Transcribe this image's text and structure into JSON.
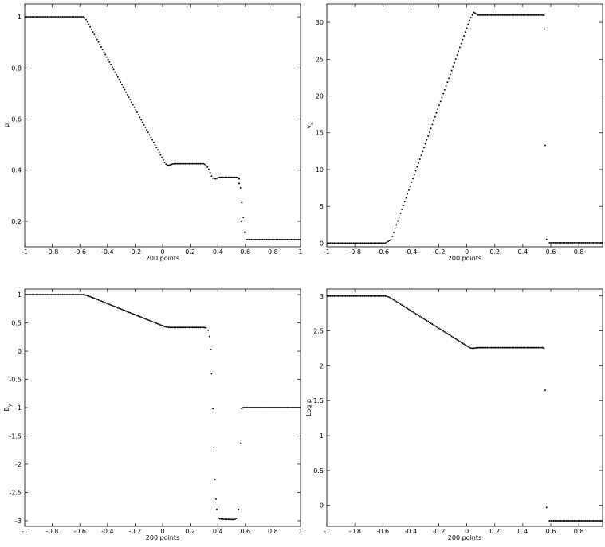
{
  "chart_data": [
    {
      "type": "scatter",
      "xlabel": "200 points",
      "ylabel": "ρ",
      "ylabel_sub": "",
      "xlim": [
        -1,
        1
      ],
      "ylim": [
        0.1,
        1.05
      ],
      "xticks": [
        -1,
        -0.8,
        -0.6,
        -0.4,
        -0.2,
        0,
        0.2,
        0.4,
        0.6,
        0.8,
        1
      ],
      "xtick_labels": [
        "-1",
        "-0.8",
        "-0.6",
        "-0.4",
        "-0.2",
        "0",
        "0.2",
        "0.4",
        "0.6",
        "0.8",
        "1"
      ],
      "yticks": [
        0.2,
        0.4,
        0.6,
        0.8,
        1
      ],
      "ytick_labels": [
        "0.2",
        "0.4",
        "0.6",
        "0.8",
        "1"
      ],
      "profile": [
        [
          -1,
          1
        ],
        [
          -0.57,
          1
        ],
        [
          -0.55,
          0.985
        ],
        [
          0.02,
          0.425
        ],
        [
          0.04,
          0.418
        ],
        [
          0.08,
          0.425
        ],
        [
          0.3,
          0.425
        ],
        [
          0.33,
          0.41
        ],
        [
          0.36,
          0.37
        ],
        [
          0.38,
          0.365
        ],
        [
          0.41,
          0.372
        ],
        [
          0.55,
          0.372
        ],
        [
          0.56,
          0.36
        ],
        [
          0.6,
          0.128
        ],
        [
          1,
          0.128
        ]
      ],
      "jump_points": [
        [
          0.555,
          0.348
        ],
        [
          0.57,
          0.2
        ]
      ],
      "grid": false
    },
    {
      "type": "scatter",
      "xlabel": "200 points",
      "ylabel": "v",
      "ylabel_sub": "x",
      "xlim": [
        -1,
        0.97
      ],
      "ylim": [
        -0.5,
        32.5
      ],
      "xticks": [
        -1,
        -0.8,
        -0.6,
        -0.4,
        -0.2,
        0,
        0.2,
        0.4,
        0.6,
        0.8
      ],
      "xtick_labels": [
        "-1",
        "-0.8",
        "-0.6",
        "-0.4",
        "-0.2",
        "0",
        "0.2",
        "0.4",
        "0.6",
        "0.8"
      ],
      "yticks": [
        0,
        5,
        10,
        15,
        20,
        25,
        30
      ],
      "ytick_labels": [
        "0",
        "5",
        "10",
        "15",
        "20",
        "25",
        "30"
      ],
      "profile": [
        [
          -1,
          0
        ],
        [
          -0.58,
          0
        ],
        [
          -0.54,
          0.5
        ],
        [
          0.02,
          30.3
        ],
        [
          0.05,
          31.4
        ],
        [
          0.08,
          31
        ],
        [
          0.55,
          31
        ],
        [
          0.56,
          30.8
        ]
      ],
      "profile2": [
        [
          0.59,
          0.05
        ],
        [
          0.97,
          0.05
        ]
      ],
      "jump_points": [
        [
          0.555,
          29.1
        ],
        [
          0.56,
          13.3
        ],
        [
          0.57,
          0.5
        ]
      ],
      "grid": false
    },
    {
      "type": "scatter",
      "xlabel": "200 points",
      "ylabel": "B",
      "ylabel_sub": "y",
      "xlim": [
        -1,
        1
      ],
      "ylim": [
        -3.1,
        1.1
      ],
      "xticks": [
        -1,
        -0.8,
        -0.6,
        -0.4,
        -0.2,
        0,
        0.2,
        0.4,
        0.6,
        0.8,
        1
      ],
      "xtick_labels": [
        "-1",
        "-0.8",
        "-0.6",
        "-0.4",
        "-0.2",
        "0",
        "0.2",
        "0.4",
        "0.6",
        "0.8",
        "1"
      ],
      "yticks": [
        -3,
        -2.5,
        -2,
        -1.5,
        -1,
        -0.5,
        0,
        0.5,
        1
      ],
      "ytick_labels": [
        "-3",
        "-2.5",
        "-2",
        "-1.5",
        "-1",
        "-0.5",
        "0",
        "0.5",
        "1"
      ],
      "profile": [
        [
          -1,
          1
        ],
        [
          -0.57,
          1
        ],
        [
          -0.54,
          0.98
        ],
        [
          0.02,
          0.43
        ],
        [
          0.05,
          0.42
        ],
        [
          0.3,
          0.42
        ],
        [
          0.32,
          0.41
        ]
      ],
      "profile2": [
        [
          0.4,
          -2.95
        ],
        [
          0.42,
          -2.97
        ],
        [
          0.52,
          -2.98
        ],
        [
          0.54,
          -2.95
        ]
      ],
      "profile3": [
        [
          0.58,
          -1
        ],
        [
          1,
          -1
        ]
      ],
      "jump_points": [
        [
          0.33,
          0.37
        ],
        [
          0.34,
          0.26
        ],
        [
          0.35,
          0.03
        ],
        [
          0.355,
          -0.4
        ],
        [
          0.365,
          -1.02
        ],
        [
          0.372,
          -1.7
        ],
        [
          0.38,
          -2.27
        ],
        [
          0.387,
          -2.62
        ],
        [
          0.393,
          -2.8
        ],
        [
          0.55,
          -2.8
        ],
        [
          0.565,
          -1.63
        ],
        [
          0.575,
          -1.02
        ]
      ],
      "grid": false
    },
    {
      "type": "scatter",
      "xlabel": "200 points",
      "ylabel": "Log p",
      "ylabel_sub": "",
      "xlim": [
        -1,
        0.97
      ],
      "ylim": [
        -0.3,
        3.1
      ],
      "xticks": [
        -1,
        -0.8,
        -0.6,
        -0.4,
        -0.2,
        0,
        0.2,
        0.4,
        0.6,
        0.8
      ],
      "xtick_labels": [
        "-1",
        "-0.8",
        "-0.6",
        "-0.4",
        "-0.2",
        "0",
        "0.2",
        "0.4",
        "0.6",
        "0.8"
      ],
      "yticks": [
        0,
        0.5,
        1,
        1.5,
        2,
        2.5,
        3
      ],
      "ytick_labels": [
        "0",
        "0.5",
        "1",
        "1.5",
        "2",
        "2.5",
        "3"
      ],
      "profile": [
        [
          -1,
          3
        ],
        [
          -0.58,
          3
        ],
        [
          -0.55,
          2.98
        ],
        [
          0.02,
          2.26
        ],
        [
          0.04,
          2.25
        ],
        [
          0.08,
          2.26
        ],
        [
          0.55,
          2.26
        ],
        [
          0.555,
          2.23
        ]
      ],
      "profile2": [
        [
          0.59,
          -0.22
        ],
        [
          0.97,
          -0.22
        ]
      ],
      "jump_points": [
        [
          0.56,
          1.65
        ],
        [
          0.57,
          -0.03
        ]
      ],
      "grid": false
    }
  ]
}
